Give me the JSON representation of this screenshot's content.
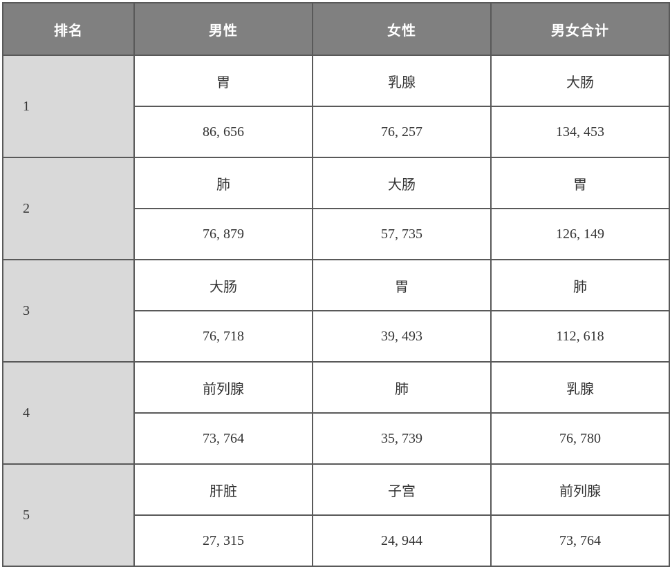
{
  "table": {
    "headers": [
      "排名",
      "男性",
      "女性",
      "男女合计"
    ],
    "rows": [
      {
        "rank": "1",
        "male_name": "胃",
        "male_val": "86, 656",
        "female_name": "乳腺",
        "female_val": "76, 257",
        "total_name": "大肠",
        "total_val": "134, 453"
      },
      {
        "rank": "2",
        "male_name": "肺",
        "male_val": "76, 879",
        "female_name": "大肠",
        "female_val": "57, 735",
        "total_name": "胃",
        "total_val": "126, 149"
      },
      {
        "rank": "3",
        "male_name": "大肠",
        "male_val": "76, 718",
        "female_name": "胃",
        "female_val": "39, 493",
        "total_name": "肺",
        "total_val": "112, 618"
      },
      {
        "rank": "4",
        "male_name": "前列腺",
        "male_val": "73, 764",
        "female_name": "肺",
        "female_val": "35, 739",
        "total_name": "乳腺",
        "total_val": "76, 780"
      },
      {
        "rank": "5",
        "male_name": "肝脏",
        "male_val": "27, 315",
        "female_name": "子宫",
        "female_val": "24, 944",
        "total_name": "前列腺",
        "total_val": "73, 764"
      }
    ],
    "colors": {
      "border": "#595959",
      "header_bg": "#808080",
      "header_fg": "#ffffff",
      "rank_bg": "#d9d9d9",
      "cell_bg": "#ffffff",
      "text": "#333333"
    }
  }
}
